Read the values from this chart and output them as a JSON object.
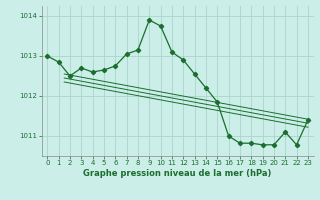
{
  "background_color": "#cceee8",
  "grid_color_h": "#aad4cc",
  "grid_color_v": "#aad4cc",
  "line_color": "#1a6e2e",
  "title": "Graphe pression niveau de la mer (hPa)",
  "xlim": [
    -0.5,
    23.5
  ],
  "ylim": [
    1010.5,
    1014.25
  ],
  "yticks": [
    1011,
    1012,
    1013,
    1014
  ],
  "xticks": [
    0,
    1,
    2,
    3,
    4,
    5,
    6,
    7,
    8,
    9,
    10,
    11,
    12,
    13,
    14,
    15,
    16,
    17,
    18,
    19,
    20,
    21,
    22,
    23
  ],
  "main_line_x": [
    0,
    1,
    2,
    3,
    4,
    5,
    6,
    7,
    8,
    9,
    10,
    11,
    12,
    13,
    14,
    15,
    16,
    17,
    18,
    19,
    20,
    21,
    22,
    23
  ],
  "main_line_y": [
    1013.0,
    1012.85,
    1012.5,
    1012.7,
    1012.6,
    1012.65,
    1012.75,
    1013.05,
    1013.15,
    1013.9,
    1013.75,
    1013.1,
    1012.9,
    1012.55,
    1012.2,
    1011.85,
    1011.0,
    1010.82,
    1010.82,
    1010.78,
    1010.78,
    1011.1,
    1010.78,
    1011.4
  ],
  "trend_line1_x": [
    1.5,
    23
  ],
  "trend_line1_y": [
    1012.55,
    1011.42
  ],
  "trend_line2_x": [
    1.5,
    23
  ],
  "trend_line2_y": [
    1012.45,
    1011.32
  ],
  "trend_line3_x": [
    1.5,
    23
  ],
  "trend_line3_y": [
    1012.35,
    1011.22
  ]
}
